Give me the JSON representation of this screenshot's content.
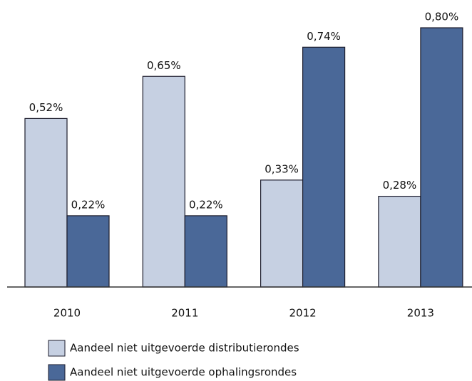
{
  "chart_data": {
    "type": "bar",
    "categories": [
      "2010",
      "2011",
      "2012",
      "2013"
    ],
    "series": [
      {
        "name": "Aandeel niet uitgevoerde distributierondes",
        "color": "#c6d0e2",
        "values": [
          0.52,
          0.65,
          0.33,
          0.28
        ],
        "value_labels": [
          "0,52%",
          "0,65%",
          "0,33%",
          "0,28%"
        ]
      },
      {
        "name": "Aandeel niet uitgevoerde ophalingsrondes",
        "color": "#4a6898",
        "values": [
          0.22,
          0.22,
          0.74,
          0.8
        ],
        "value_labels": [
          "0,22%",
          "0,22%",
          "0,74%",
          "0,80%"
        ]
      }
    ],
    "ylim": [
      0,
      0.8
    ]
  }
}
